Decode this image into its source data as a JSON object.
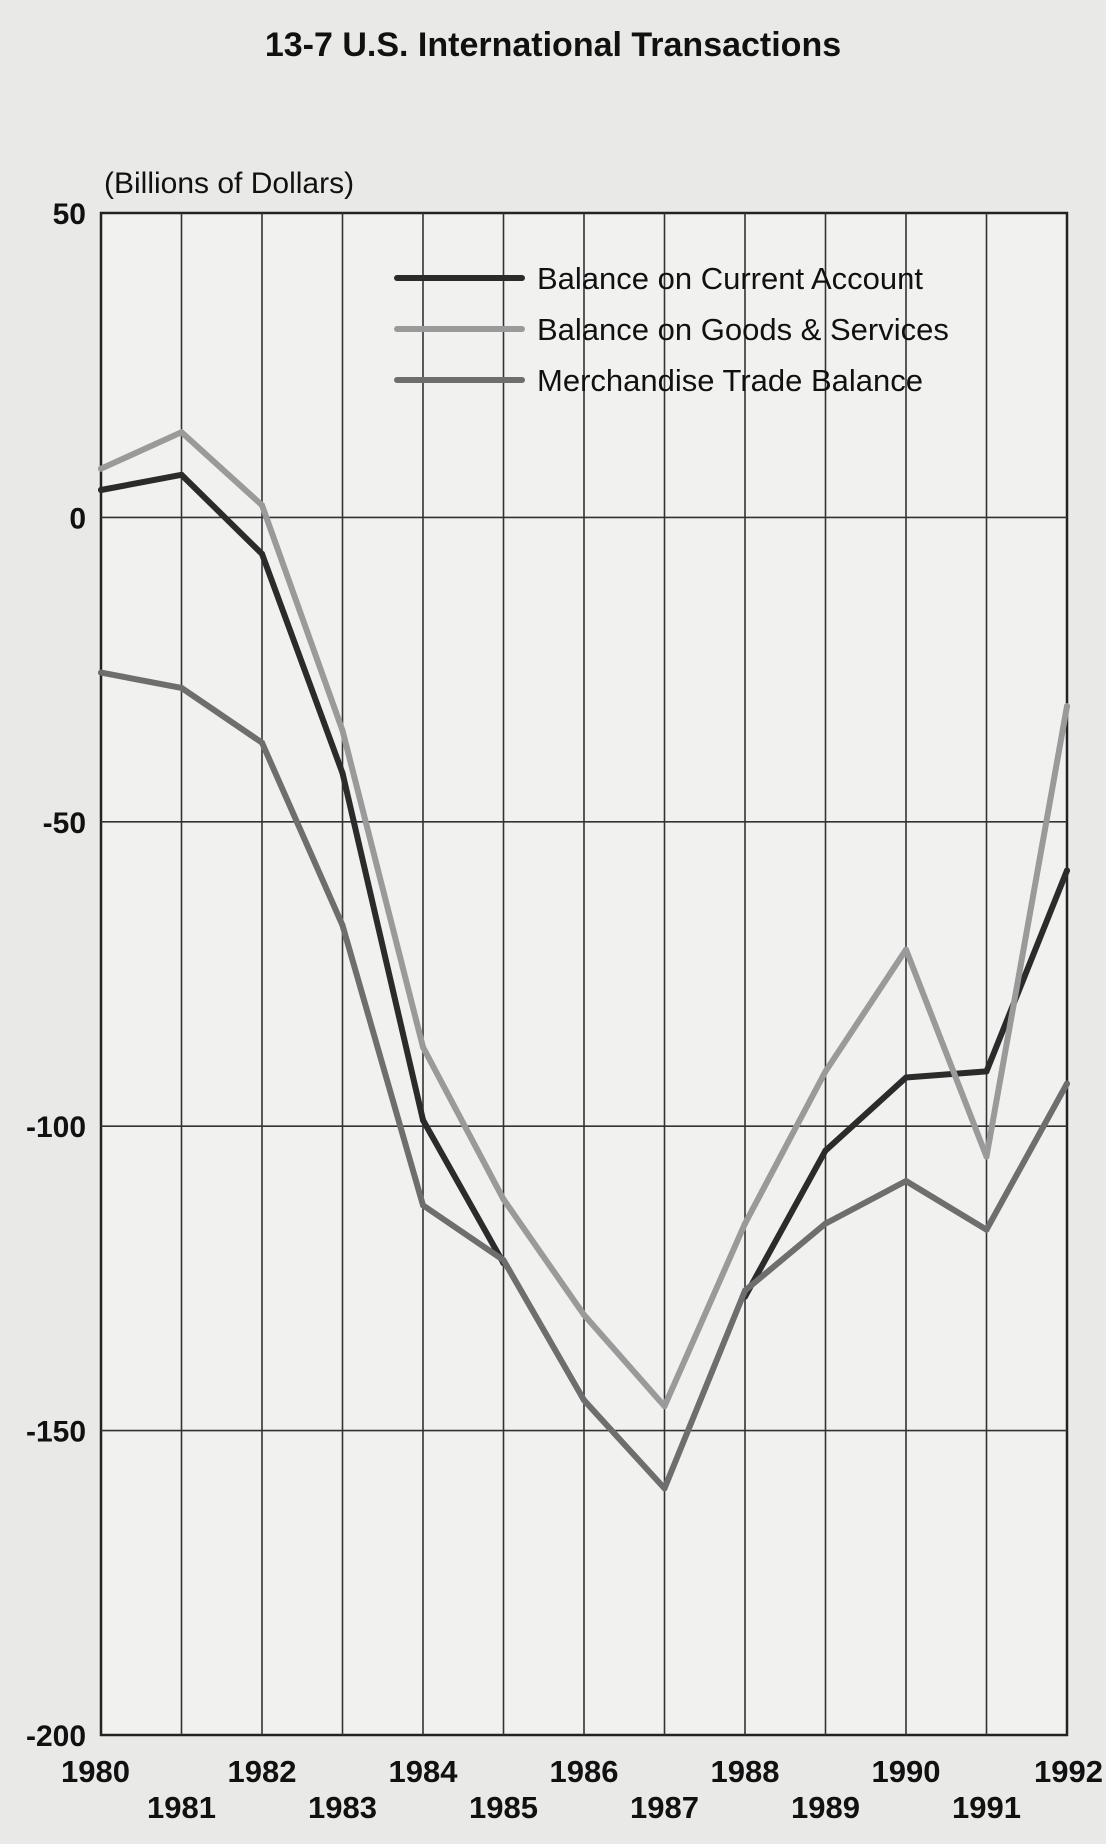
{
  "chart_data": {
    "type": "line",
    "title": "13-7 U.S. International Transactions",
    "ylabel": "(Billions of Dollars)",
    "xlabel": "",
    "categories": [
      "1980",
      "1981",
      "1982",
      "1983",
      "1984",
      "1985",
      "1986",
      "1987",
      "1988",
      "1989",
      "1990",
      "1991",
      "1992"
    ],
    "ylim": [
      -200,
      50
    ],
    "yticks": [
      50,
      0,
      -50,
      -100,
      -150,
      -200
    ],
    "ytick_labels": [
      "50",
      "0",
      "-50",
      "-100",
      "-150",
      "-200"
    ],
    "grid": true,
    "legend_position": "top-right",
    "series": [
      {
        "name": "Balance on Current Account",
        "color": "#2b2b2b",
        "values": [
          4.5,
          7,
          -6,
          -42,
          -99,
          -122.5,
          null,
          null,
          -128,
          -104,
          -92,
          -91,
          -58
        ]
      },
      {
        "name": "Balance on Goods & Services",
        "color": "#9a9a9a",
        "values": [
          8,
          14,
          2,
          -35,
          -87,
          -112,
          -131,
          -146,
          -116,
          -91,
          -71,
          -105,
          -31
        ]
      },
      {
        "name": "Merchandise Trade Balance",
        "color": "#6e6e6e",
        "values": [
          -25.5,
          -28,
          -37,
          -67,
          -113,
          -122,
          -145,
          -159.5,
          -127,
          -116,
          -109,
          -117,
          -93
        ]
      }
    ]
  }
}
